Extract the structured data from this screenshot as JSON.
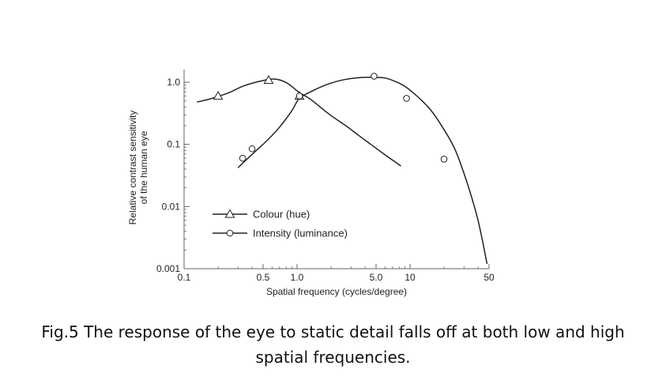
{
  "chart_data": {
    "type": "line",
    "xlabel": "Spatial frequency (cycles/degree)",
    "ylabel": "Relative contrast sensitivity of the human eye",
    "ylabel_lines": [
      "Relative contrast sensitivity",
      "of the human eye"
    ],
    "x_scale": "log",
    "y_scale": "log",
    "xlim": [
      0.1,
      50
    ],
    "ylim": [
      0.001,
      1.6
    ],
    "grid": false,
    "legend_position": "center",
    "x_ticks": [
      {
        "value": 0.1,
        "label": "0.1"
      },
      {
        "value": 0.5,
        "label": "0.5"
      },
      {
        "value": 1.0,
        "label": "1.0"
      },
      {
        "value": 5.0,
        "label": "5.0"
      },
      {
        "value": 10,
        "label": "10"
      },
      {
        "value": 50,
        "label": "50"
      }
    ],
    "y_ticks": [
      {
        "value": 0.001,
        "label": "0.001"
      },
      {
        "value": 0.01,
        "label": "0.01"
      },
      {
        "value": 0.1,
        "label": "0.1"
      },
      {
        "value": 1.0,
        "label": "1.0"
      }
    ],
    "series": [
      {
        "name": "Colour (hue)",
        "marker": "triangle",
        "color": "#222222",
        "x": [
          0.13,
          0.17,
          0.25,
          0.33,
          0.45,
          0.58,
          0.7,
          0.84,
          1.05,
          1.3,
          1.6,
          2.0,
          2.7,
          3.5,
          4.5,
          6.0,
          8.3
        ],
        "y": [
          0.48,
          0.54,
          0.68,
          0.86,
          1.02,
          1.12,
          1.09,
          0.94,
          0.68,
          0.54,
          0.4,
          0.29,
          0.2,
          0.14,
          0.1,
          0.068,
          0.045
        ],
        "markers_at": [
          {
            "x": 0.2,
            "y": 0.6
          },
          {
            "x": 0.56,
            "y": 1.08
          },
          {
            "x": 1.05,
            "y": 0.6
          }
        ]
      },
      {
        "name": "Intensity (luminance)",
        "marker": "circle",
        "color": "#222222",
        "x": [
          0.3,
          0.35,
          0.43,
          0.55,
          0.7,
          0.9,
          1.05,
          1.4,
          1.9,
          2.6,
          3.6,
          4.8,
          6.0,
          7.2,
          9.0,
          11.5,
          15.0,
          19.0,
          25.0,
          32.0,
          40.0,
          48.0
        ],
        "y": [
          0.042,
          0.055,
          0.078,
          0.118,
          0.19,
          0.35,
          0.55,
          0.74,
          0.94,
          1.1,
          1.19,
          1.2,
          1.17,
          1.05,
          0.86,
          0.6,
          0.37,
          0.2,
          0.083,
          0.024,
          0.006,
          0.0012
        ],
        "markers_at": [
          {
            "x": 0.33,
            "y": 0.06
          },
          {
            "x": 0.4,
            "y": 0.085
          },
          {
            "x": 1.05,
            "y": 0.6
          },
          {
            "x": 4.8,
            "y": 1.25
          },
          {
            "x": 9.3,
            "y": 0.55
          },
          {
            "x": 20.0,
            "y": 0.058
          }
        ]
      }
    ]
  },
  "caption": {
    "line1": "Fig.5 The response of the eye to static detail falls off at both low and high",
    "line2": "spatial frequencies."
  }
}
